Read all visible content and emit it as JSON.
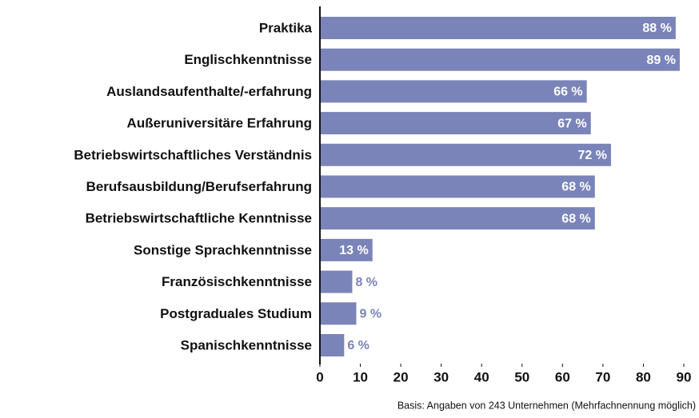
{
  "chart_data": {
    "type": "bar",
    "orientation": "horizontal",
    "categories": [
      "Praktika",
      "Englischkenntnisse",
      "Auslandsaufenthalte/-erfahrung",
      "Außeruniversitäre Erfahrung",
      "Betriebswirtschaftliches Verständnis",
      "Berufsausbildung/Berufserfahrung",
      "Betriebswirtschaftliche Kenntnisse",
      "Sonstige Sprachkenntnisse",
      "Französischkenntnisse",
      "Postgraduales Studium",
      "Spanischkenntnisse"
    ],
    "values": [
      88,
      89,
      66,
      67,
      72,
      68,
      68,
      13,
      8,
      9,
      6
    ],
    "value_labels": [
      "88 %",
      "89 %",
      "66 %",
      "67 %",
      "72 %",
      "68 %",
      "68 %",
      "13 %",
      "8 %",
      "9 %",
      "6 %"
    ],
    "color": "#7b84b8",
    "xlim": [
      0,
      90
    ],
    "xticks": [
      0,
      10,
      20,
      30,
      40,
      50,
      60,
      70,
      80,
      90
    ],
    "note": "Basis: Angaben von 243 Unternehmen (Mehrfachnennung möglich)"
  }
}
